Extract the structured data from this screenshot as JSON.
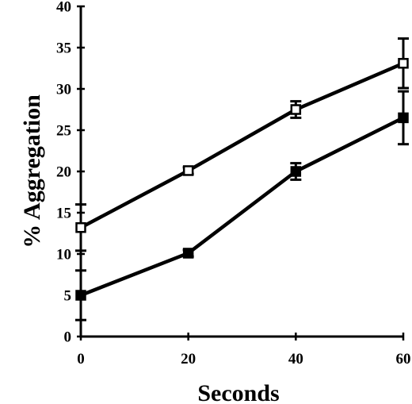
{
  "chart_data": {
    "type": "line",
    "title": "",
    "xlabel": "Seconds",
    "ylabel": "% Aggregation",
    "xlim": [
      0,
      60
    ],
    "ylim": [
      0,
      40
    ],
    "xticks": [
      0,
      20,
      40,
      60
    ],
    "yticks": [
      0,
      5,
      10,
      15,
      20,
      25,
      30,
      35,
      40
    ],
    "x_tick_labels": [
      "0",
      "20",
      "40",
      "60"
    ],
    "y_tick_labels": [
      "0",
      "5",
      "10",
      "15",
      "20",
      "25",
      "30",
      "35",
      "40"
    ],
    "grid": false,
    "legend": "none",
    "x": [
      0,
      20,
      40,
      60
    ],
    "series": [
      {
        "marker": "open-square",
        "color": "#000000",
        "values": [
          13.2,
          20.1,
          27.5,
          33.1
        ],
        "error": [
          2.8,
          0.4,
          1.0,
          3.0
        ]
      },
      {
        "marker": "filled-square",
        "color": "#000000",
        "values": [
          5.0,
          10.1,
          20.0,
          26.5
        ],
        "error": [
          3.0,
          0.4,
          1.0,
          3.2
        ]
      }
    ]
  }
}
